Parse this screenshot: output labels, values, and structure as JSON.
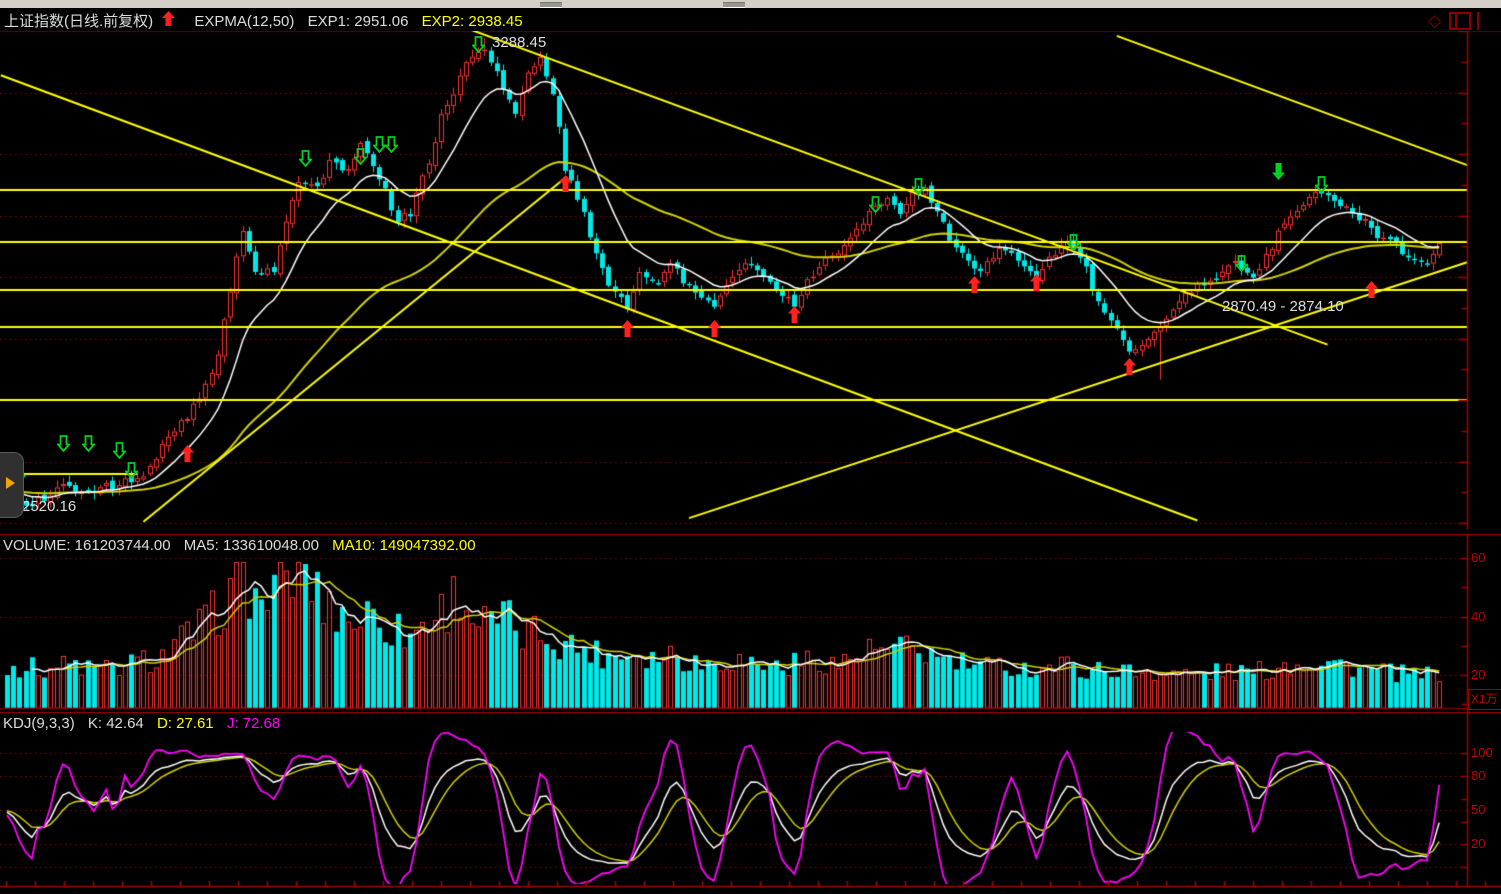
{
  "header": {
    "title": "上证指数(日线.前复权)",
    "indicator": "EXPMA(12,50)",
    "exp1": "EXP1: 2951.06",
    "exp2": "EXP2: 2938.45"
  },
  "volume_header": {
    "volume": "VOLUME: 161203744.00",
    "ma5": "MA5: 133610048.00",
    "ma10": "MA10: 149047392.00"
  },
  "kdj_header": {
    "name": "KDJ(9,3,3)",
    "k": "K: 42.64",
    "d": "D: 27.61",
    "j": "J: 72.68"
  },
  "labels": {
    "peak": "3288.45",
    "low": "2520.16",
    "gap": "2870.49 - 2874.10"
  },
  "axes": {
    "volume_ticks": [
      "60",
      "40",
      "20"
    ],
    "volume_unit": "X1万",
    "kdj_ticks": [
      "100",
      "80",
      "50",
      "20"
    ]
  },
  "colors": {
    "up": "#ff3030",
    "down": "#00e8e8",
    "exp1": "#ffffff",
    "exp2": "#d0d000",
    "trendline": "#ffff00",
    "grid": "#980000",
    "axis": "#a40000",
    "j_line": "#ff00ff",
    "buy": "#ff2020",
    "sell": "#00d020",
    "header_text": "#dcdcdc",
    "header_yellow": "#e8e800"
  },
  "chart_data": {
    "type": "candlestick",
    "symbol": "上证指数",
    "period": "日线.前复权",
    "overlays": {
      "expma": [
        12,
        50
      ],
      "exp1": 2951.06,
      "exp2": 2938.45
    },
    "marked_prices": {
      "high": 3288.45,
      "low": 2520.16,
      "gap_zone": "2870.49 - 2874.10"
    },
    "volume": {
      "latest": 161203744.0,
      "ma5": 133610048.0,
      "ma10": 149047392.0,
      "unit": "X1万"
    },
    "kdj": {
      "params": [
        9,
        3,
        3
      ],
      "k": 42.64,
      "d": 27.61,
      "j": 72.68,
      "gridlines": [
        100,
        80,
        50,
        20,
        0
      ]
    },
    "y_axis": {
      "top_price": 3300,
      "bottom_price": 2488,
      "gridline_prices": [
        3300,
        3200,
        3100,
        3000,
        2900,
        2800,
        2700,
        2600,
        2500
      ]
    },
    "num_bars": 232,
    "close_anchors": [
      [
        0,
        2550
      ],
      [
        3,
        2525
      ],
      [
        9,
        2560
      ],
      [
        13,
        2548
      ],
      [
        18,
        2565
      ],
      [
        22,
        2580
      ],
      [
        27,
        2650
      ],
      [
        31,
        2700
      ],
      [
        34,
        2770
      ],
      [
        37,
        2935
      ],
      [
        38,
        2975
      ],
      [
        40,
        2905
      ],
      [
        43,
        2915
      ],
      [
        45,
        2985
      ],
      [
        47,
        3060
      ],
      [
        50,
        3045
      ],
      [
        52,
        3090
      ],
      [
        55,
        3070
      ],
      [
        57,
        3120
      ],
      [
        59,
        3080
      ],
      [
        61,
        3040
      ],
      [
        63,
        2990
      ],
      [
        65,
        3005
      ],
      [
        68,
        3090
      ],
      [
        70,
        3160
      ],
      [
        73,
        3225
      ],
      [
        75,
        3262
      ],
      [
        77,
        3270
      ],
      [
        80,
        3212
      ],
      [
        82,
        3168
      ],
      [
        84,
        3228
      ],
      [
        86,
        3255
      ],
      [
        88,
        3200
      ],
      [
        90,
        3075
      ],
      [
        93,
        3000
      ],
      [
        95,
        2940
      ],
      [
        97,
        2890
      ],
      [
        100,
        2848
      ],
      [
        102,
        2905
      ],
      [
        105,
        2895
      ],
      [
        107,
        2920
      ],
      [
        109,
        2895
      ],
      [
        112,
        2872
      ],
      [
        114,
        2850
      ],
      [
        117,
        2905
      ],
      [
        119,
        2925
      ],
      [
        122,
        2905
      ],
      [
        124,
        2882
      ],
      [
        127,
        2855
      ],
      [
        129,
        2895
      ],
      [
        132,
        2930
      ],
      [
        134,
        2945
      ],
      [
        137,
        2975
      ],
      [
        139,
        3010
      ],
      [
        142,
        3025
      ],
      [
        144,
        3000
      ],
      [
        146,
        3035
      ],
      [
        148,
        3045
      ],
      [
        150,
        3008
      ],
      [
        152,
        2965
      ],
      [
        154,
        2935
      ],
      [
        157,
        2912
      ],
      [
        159,
        2935
      ],
      [
        161,
        2945
      ],
      [
        164,
        2922
      ],
      [
        166,
        2902
      ],
      [
        168,
        2930
      ],
      [
        171,
        2958
      ],
      [
        173,
        2938
      ],
      [
        175,
        2885
      ],
      [
        178,
        2830
      ],
      [
        181,
        2780
      ],
      [
        183,
        2795
      ],
      [
        186,
        2822
      ],
      [
        188,
        2852
      ],
      [
        191,
        2880
      ],
      [
        193,
        2892
      ],
      [
        196,
        2905
      ],
      [
        198,
        2925
      ],
      [
        201,
        2902
      ],
      [
        203,
        2932
      ],
      [
        206,
        2988
      ],
      [
        208,
        3012
      ],
      [
        211,
        3032
      ],
      [
        213,
        3028
      ],
      [
        216,
        3012
      ],
      [
        219,
        2992
      ],
      [
        221,
        2965
      ],
      [
        224,
        2952
      ],
      [
        226,
        2932
      ],
      [
        229,
        2926
      ],
      [
        231,
        2958
      ]
    ],
    "forced_points": {
      "low_bar": 3,
      "low": 2520.16,
      "high_bar": 77,
      "high": 3288.45,
      "aug_low_bar": 186,
      "aug_low": 2733
    },
    "volume_anchors": [
      [
        0,
        0.3
      ],
      [
        5,
        0.27
      ],
      [
        10,
        0.3
      ],
      [
        15,
        0.26
      ],
      [
        20,
        0.3
      ],
      [
        25,
        0.36
      ],
      [
        28,
        0.46
      ],
      [
        32,
        0.58
      ],
      [
        36,
        0.78
      ],
      [
        38,
        0.95
      ],
      [
        40,
        0.72
      ],
      [
        43,
        0.8
      ],
      [
        46,
        0.92
      ],
      [
        48,
        0.97
      ],
      [
        50,
        0.76
      ],
      [
        53,
        0.68
      ],
      [
        56,
        0.6
      ],
      [
        59,
        0.66
      ],
      [
        62,
        0.55
      ],
      [
        65,
        0.5
      ],
      [
        68,
        0.62
      ],
      [
        71,
        0.7
      ],
      [
        73,
        0.82
      ],
      [
        75,
        0.62
      ],
      [
        78,
        0.56
      ],
      [
        80,
        0.62
      ],
      [
        83,
        0.5
      ],
      [
        86,
        0.52
      ],
      [
        89,
        0.46
      ],
      [
        92,
        0.42
      ],
      [
        95,
        0.38
      ],
      [
        98,
        0.36
      ],
      [
        101,
        0.4
      ],
      [
        104,
        0.35
      ],
      [
        107,
        0.38
      ],
      [
        110,
        0.33
      ],
      [
        113,
        0.3
      ],
      [
        116,
        0.34
      ],
      [
        119,
        0.32
      ],
      [
        122,
        0.3
      ],
      [
        125,
        0.28
      ],
      [
        128,
        0.32
      ],
      [
        131,
        0.34
      ],
      [
        134,
        0.3
      ],
      [
        137,
        0.36
      ],
      [
        140,
        0.4
      ],
      [
        143,
        0.38
      ],
      [
        146,
        0.42
      ],
      [
        149,
        0.36
      ],
      [
        152,
        0.32
      ],
      [
        155,
        0.3
      ],
      [
        158,
        0.28
      ],
      [
        161,
        0.3
      ],
      [
        164,
        0.27
      ],
      [
        167,
        0.28
      ],
      [
        170,
        0.3
      ],
      [
        173,
        0.27
      ],
      [
        176,
        0.26
      ],
      [
        179,
        0.27
      ],
      [
        182,
        0.24
      ],
      [
        185,
        0.26
      ],
      [
        188,
        0.24
      ],
      [
        191,
        0.23
      ],
      [
        194,
        0.24
      ],
      [
        197,
        0.26
      ],
      [
        200,
        0.24
      ],
      [
        203,
        0.26
      ],
      [
        206,
        0.3
      ],
      [
        209,
        0.32
      ],
      [
        212,
        0.33
      ],
      [
        215,
        0.3
      ],
      [
        218,
        0.28
      ],
      [
        221,
        0.25
      ],
      [
        224,
        0.24
      ],
      [
        227,
        0.22
      ],
      [
        231,
        0.24
      ]
    ],
    "horizontal_levels": [
      3041,
      2957,
      2879,
      2819,
      2700
    ],
    "short_level": {
      "price": 2580,
      "from_bar": 0,
      "to_bar": 21
    },
    "trendlines": [
      [
        -1,
        3228,
        192,
        2504
      ],
      [
        110,
        2508,
        235.5,
        2924
      ],
      [
        74,
        3305,
        213,
        2790
      ],
      [
        179,
        3292,
        235.5,
        3082
      ],
      [
        22,
        2502,
        90,
        3061
      ]
    ],
    "buy_signals": [
      [
        29,
        2627
      ],
      [
        90,
        3066
      ],
      [
        100,
        2830
      ],
      [
        114,
        2830
      ],
      [
        127,
        2853
      ],
      [
        156,
        2902
      ],
      [
        166,
        2905
      ],
      [
        181,
        2768
      ],
      [
        220,
        2894
      ]
    ],
    "sell_signals_hollow": [
      [
        2,
        2593
      ],
      [
        9,
        2643
      ],
      [
        13,
        2643
      ],
      [
        18,
        2632
      ],
      [
        20,
        2599
      ],
      [
        48,
        3107
      ],
      [
        57,
        3110
      ],
      [
        60,
        3129
      ],
      [
        62,
        3129
      ],
      [
        76,
        3292
      ],
      [
        140,
        3032
      ],
      [
        147,
        3061
      ],
      [
        172,
        2970
      ],
      [
        199,
        2936
      ],
      [
        212,
        3064
      ]
    ],
    "sell_signals_solid": [
      [
        205,
        3085
      ]
    ]
  }
}
